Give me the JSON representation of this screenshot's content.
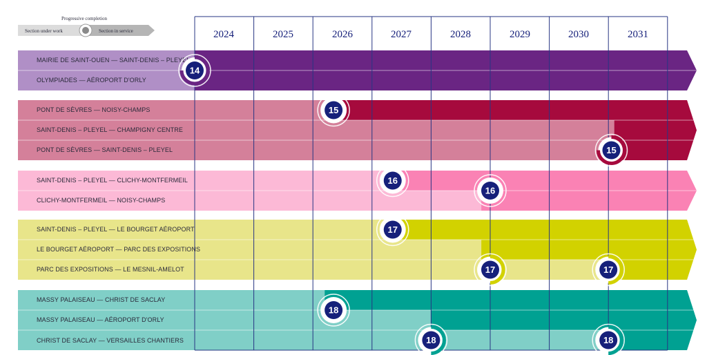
{
  "legend": {
    "title": "Progressive completion",
    "left_label": "Section under work",
    "right_label": "Section in service"
  },
  "years": [
    "2024",
    "2025",
    "2026",
    "2027",
    "2028",
    "2029",
    "2030",
    "2031"
  ],
  "lines": [
    {
      "id": "14",
      "light": "#b08fc6",
      "dark": "#6a2583",
      "rows": [
        {
          "label": "MAIRIE DE SAINT-OUEN  —  SAINT-DENIS – PLEYEL",
          "service_year": 2024.0
        },
        {
          "label": "OLYMPIADES  —  AÉROPORT D'ORLY",
          "service_year": 2024.0
        }
      ],
      "badges": [
        {
          "number": "14",
          "year": 2024.0,
          "row": 0.5,
          "style": "dark-ring"
        }
      ]
    },
    {
      "id": "15",
      "light": "#d4809a",
      "dark": "#a60a3d",
      "rows": [
        {
          "label": "PONT DE SÈVRES  —  NOISY-CHAMPS",
          "service_year": 2026.2
        },
        {
          "label": "SAINT-DENIS – PLEYEL  —  CHAMPIGNY CENTRE",
          "service_year": 2031.1
        },
        {
          "label": "PONT DE SÈVRES  —  SAINT-DENIS – PLEYEL",
          "service_year": 2031.1
        }
      ],
      "badges": [
        {
          "number": "15",
          "year": 2026.35,
          "row": 0,
          "style": "ring"
        },
        {
          "number": "15",
          "year": 2031.05,
          "row": 2,
          "style": "dark-ring"
        }
      ]
    },
    {
      "id": "16",
      "light": "#fcb9d6",
      "dark": "#fa82b4",
      "rows": [
        {
          "label": "SAINT-DENIS – PLEYEL  —  CLICHY-MONTFERMEIL",
          "service_year": 2027.35
        },
        {
          "label": "CLICHY-MONTFERMEIL  —  NOISY-CHAMPS",
          "service_year": 2028.85
        }
      ],
      "badges": [
        {
          "number": "16",
          "year": 2027.35,
          "row": 0,
          "style": "ring"
        },
        {
          "number": "16",
          "year": 2029.0,
          "row": 0.5,
          "style": "ring"
        }
      ]
    },
    {
      "id": "17",
      "light": "#e8e58a",
      "dark": "#d2d200",
      "rows": [
        {
          "label": "SAINT-DENIS – PLEYEL  —  LE BOURGET AÉROPORT",
          "service_year": 2027.35
        },
        {
          "label": "LE BOURGET AÉROPORT  —  PARC DES EXPOSITIONS",
          "service_year": 2028.85
        },
        {
          "label": "PARC DES EXPOSITIONS  —  LE MESNIL-AMELOT",
          "service_year": 2030.85
        }
      ],
      "badges": [
        {
          "number": "17",
          "year": 2027.35,
          "row": 0,
          "style": "ring"
        },
        {
          "number": "17",
          "year": 2029.0,
          "row": 2,
          "style": "half-ring"
        },
        {
          "number": "17",
          "year": 2031.0,
          "row": 2,
          "style": "half-ring"
        }
      ]
    },
    {
      "id": "18",
      "light": "#80cfc7",
      "dark": "#00a192",
      "rows": [
        {
          "label": "MASSY PALAISEAU  —  CHRIST DE SACLAY",
          "service_year": 2026.2
        },
        {
          "label": "MASSY PALAISEAU  —  AÉROPORT D'ORLY",
          "service_year": 2028.0
        },
        {
          "label": "CHRIST DE SACLAY  —  VERSAILLES CHANTIERS",
          "service_year": 2030.85
        }
      ],
      "badges": [
        {
          "number": "18",
          "year": 2026.35,
          "row": 0.5,
          "style": "ring"
        },
        {
          "number": "18",
          "year": 2028.0,
          "row": 2,
          "style": "half-ring"
        },
        {
          "number": "18",
          "year": 2031.0,
          "row": 2,
          "style": "half-ring"
        }
      ]
    }
  ],
  "colors": {
    "grid": "#273583",
    "badge": "#16207a",
    "year_text": "#16207a"
  }
}
